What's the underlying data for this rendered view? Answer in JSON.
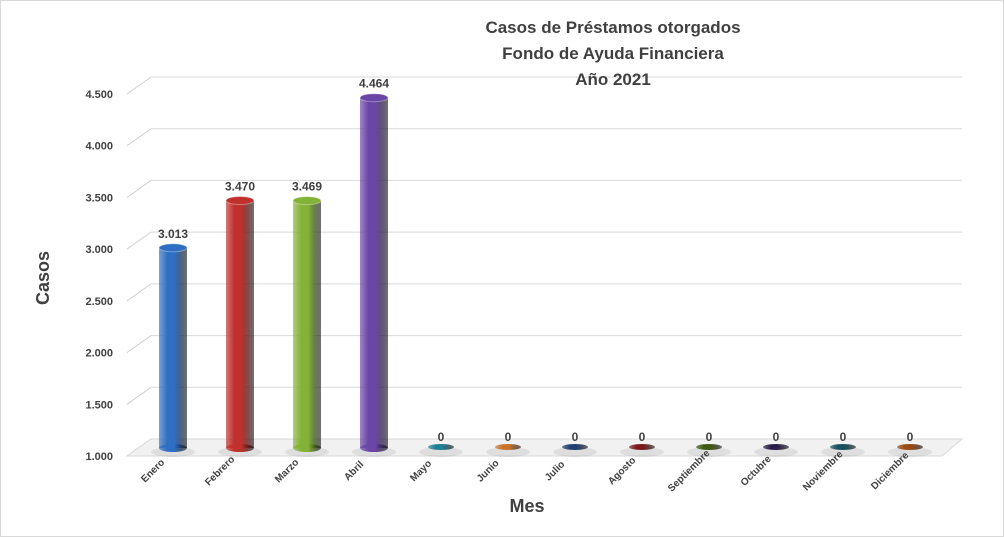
{
  "chart_data": {
    "type": "bar",
    "title": [
      "Casos de Préstamos otorgados",
      "Fondo de Ayuda Financiera",
      "Año 2021"
    ],
    "xlabel": "Mes",
    "ylabel": "Casos",
    "ylim": [
      1000,
      4500
    ],
    "yticks": [
      1000,
      1500,
      2000,
      2500,
      3000,
      3500,
      4000,
      4500
    ],
    "ytick_labels": [
      "1.000",
      "1.500",
      "2.000",
      "2.500",
      "3.000",
      "3.500",
      "4.000",
      "4.500"
    ],
    "grid": true,
    "legend": "none",
    "categories": [
      "Enero",
      "Febrero",
      "Marzo",
      "Abril",
      "Mayo",
      "Junio",
      "Julio",
      "Agosto",
      "Septiembre",
      "Octubre",
      "Noviembre",
      "Diciembre"
    ],
    "values": [
      3013,
      3470,
      3469,
      4464,
      0,
      0,
      0,
      0,
      0,
      0,
      0,
      0
    ],
    "value_labels": [
      "3.013",
      "3.470",
      "3.469",
      "4.464",
      "0",
      "0",
      "0",
      "0",
      "0",
      "0",
      "0",
      "0"
    ],
    "colors": [
      "#2e6fc4",
      "#c0302c",
      "#82b236",
      "#6a46a6",
      "#1f7f94",
      "#c9742a",
      "#1f3f72",
      "#7a1a1a",
      "#3f5a14",
      "#2a1c47",
      "#16505f",
      "#9a4a12"
    ]
  }
}
